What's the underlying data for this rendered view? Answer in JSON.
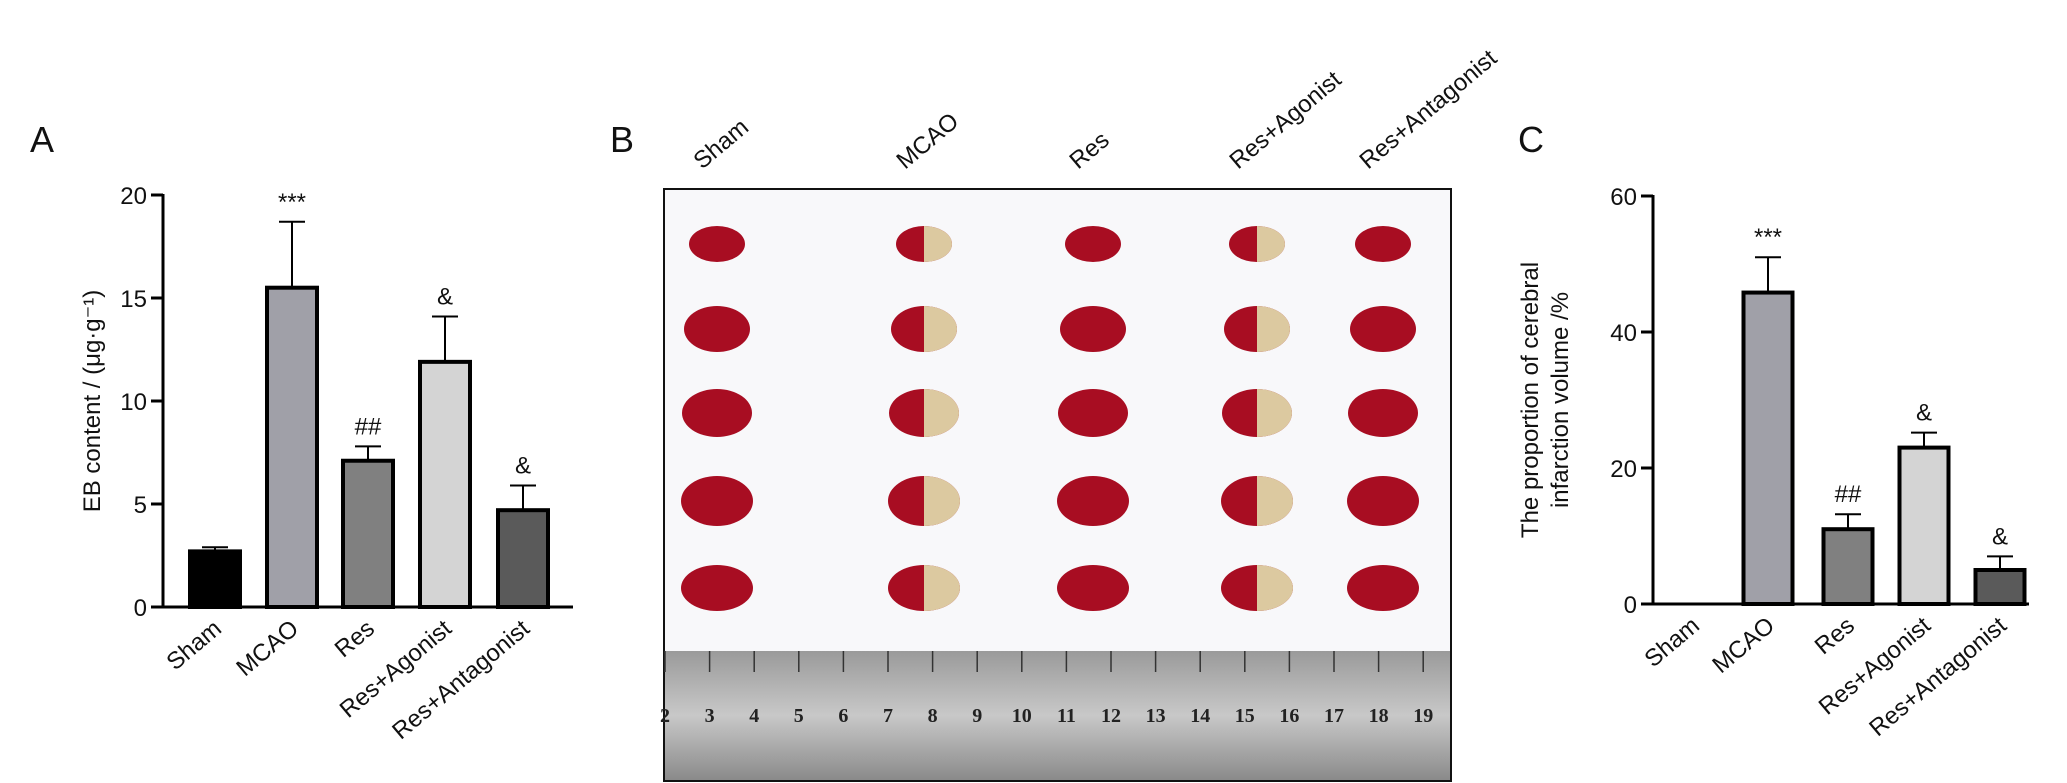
{
  "chart_data": [
    {
      "type": "bar",
      "panel": "A",
      "y_label": [
        "EB content / (μg·g⁻¹)"
      ],
      "categories": [
        "Sham",
        "MCAO",
        "Res",
        "Res+Agonist",
        "Res+Antagonist"
      ],
      "values": [
        2.7,
        15.5,
        7.1,
        11.9,
        4.7
      ],
      "errors": [
        0.2,
        3.2,
        0.7,
        2.2,
        1.2
      ],
      "annotations": [
        null,
        "***",
        "##",
        "&",
        "&"
      ],
      "colors": [
        "#000000",
        "#a0a0a8",
        "#808080",
        "#d4d4d4",
        "#5a5a5a"
      ],
      "ylim": [
        0,
        20
      ],
      "yticks": [
        0,
        5,
        10,
        15,
        20
      ]
    },
    {
      "type": "bar",
      "panel": "C",
      "y_label": [
        "The proportion of cerebral",
        "infarction volume /%"
      ],
      "categories": [
        "Sham",
        "MCAO",
        "Res",
        "Res+Agonist",
        "Res+Antagonist"
      ],
      "values": [
        0,
        45.8,
        11,
        23,
        5
      ],
      "errors": [
        0,
        5.2,
        2.2,
        2.2,
        2
      ],
      "annotations": [
        null,
        "***",
        "##",
        "&",
        "&"
      ],
      "colors": [
        "#000000",
        "#a0a0a8",
        "#808080",
        "#d4d4d4",
        "#5a5a5a"
      ],
      "ylim": [
        0,
        60
      ],
      "yticks": [
        0,
        20,
        40,
        60
      ]
    }
  ],
  "photo_panel": {
    "panel": "B",
    "columns": [
      "Sham",
      "MCAO",
      "Res",
      "Res+Agonist",
      "Res+Antagonist"
    ],
    "ruler_numbers": [
      "2",
      "3",
      "4",
      "5",
      "6",
      "7",
      "8",
      "9",
      "10",
      "11",
      "12",
      "13",
      "14",
      "15",
      "16",
      "17",
      "18",
      "19"
    ]
  }
}
